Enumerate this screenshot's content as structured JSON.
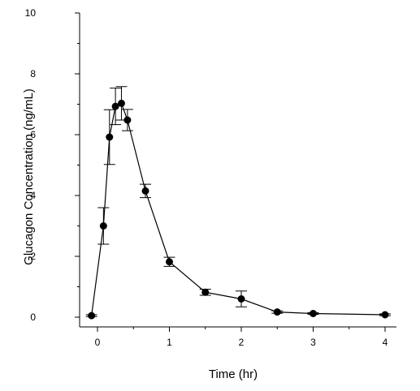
{
  "chart_data": {
    "type": "scatter",
    "title": "",
    "xlabel": "Time (hr)",
    "ylabel": "Glucagon Concentration (ng/mL)",
    "xlim": [
      -0.25,
      4.1
    ],
    "ylim": [
      0,
      10
    ],
    "xticks": [
      0,
      1,
      2,
      3,
      4
    ],
    "yticks": [
      0,
      2,
      4,
      6,
      8,
      10
    ],
    "xtick_labels": [
      "0",
      "1",
      "2",
      "3",
      "4"
    ],
    "ytick_labels": [
      "0",
      "2",
      "4",
      "6",
      "8",
      "10"
    ],
    "grid": false,
    "legend": "none",
    "line_color": "#000000",
    "marker_color": "#000000",
    "marker": "filled-circle",
    "error_bars": "symmetric",
    "series": [
      {
        "x": [
          -0.083,
          0.083,
          0.167,
          0.25,
          0.333,
          0.417,
          0.667,
          1.0,
          1.5,
          2.0,
          2.5,
          3.0,
          4.0
        ],
        "y": [
          0.05,
          3.0,
          5.92,
          6.93,
          7.03,
          6.48,
          4.15,
          1.82,
          0.82,
          0.6,
          0.17,
          0.12,
          0.08
        ],
        "err": [
          0.03,
          0.6,
          0.9,
          0.6,
          0.55,
          0.35,
          0.22,
          0.15,
          0.1,
          0.26,
          0.04,
          0.03,
          0.03
        ]
      }
    ]
  }
}
